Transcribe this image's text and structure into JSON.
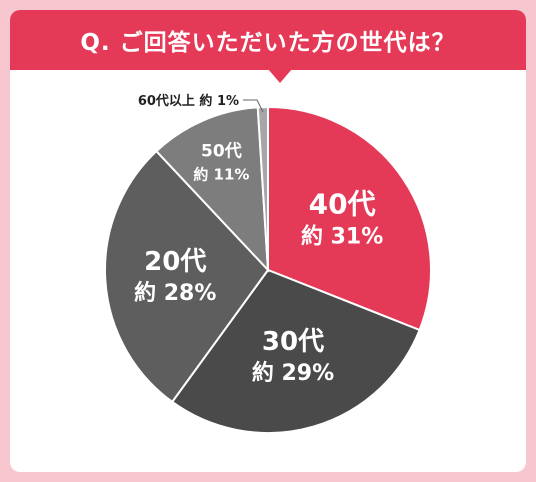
{
  "header": {
    "title": "Q. ご回答いただいた方の世代は？"
  },
  "chart_data": {
    "type": "pie",
    "categories": [
      "40代",
      "30代",
      "20代",
      "50代",
      "60代以上"
    ],
    "values": [
      31,
      29,
      28,
      11,
      1
    ],
    "value_prefix": "約",
    "value_suffix": "%",
    "colors": [
      "#e43a58",
      "#4a4a4a",
      "#5e5e5e",
      "#7d7d7d",
      "#a6a6a6"
    ]
  }
}
